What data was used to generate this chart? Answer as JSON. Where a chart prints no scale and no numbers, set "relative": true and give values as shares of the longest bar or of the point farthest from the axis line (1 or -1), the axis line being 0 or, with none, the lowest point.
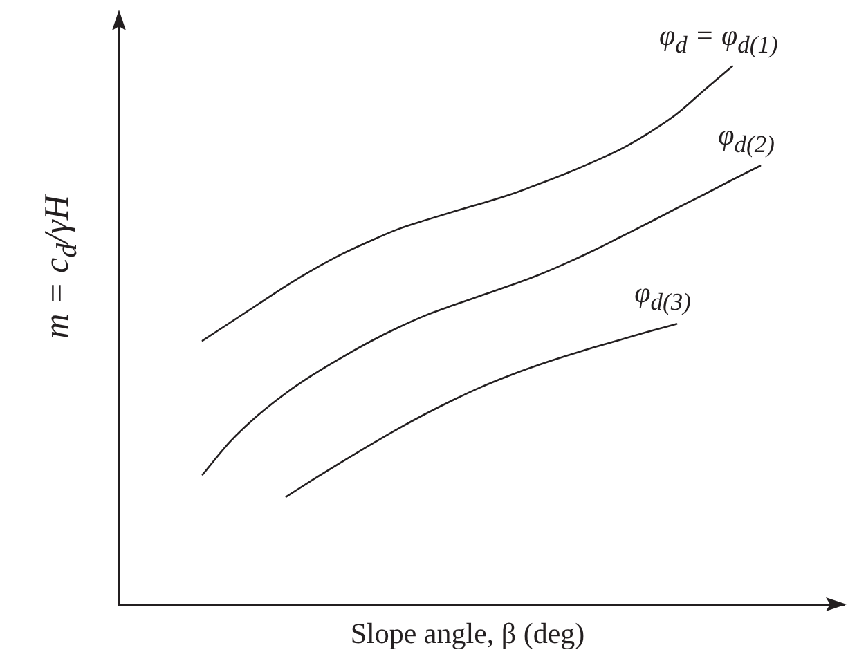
{
  "chart_data": {
    "type": "line",
    "relative": true,
    "xlabel": "Slope angle, β (deg)",
    "ylabel": "m = c$_{d}$/γH",
    "categories": [
      null,
      null,
      null,
      null,
      null,
      null,
      null,
      null,
      null,
      null,
      null,
      null,
      null,
      null,
      null,
      null,
      null,
      null,
      null,
      null,
      null,
      null,
      null,
      null,
      null,
      null,
      null
    ],
    "series": [
      {
        "name": "φ$_{d}$ = φ$_{d(1)}$",
        "color": "#231f20",
        "values": [
          null,
          null,
          null,
          0.49,
          0.524,
          0.558,
          0.592,
          0.623,
          0.651,
          0.675,
          0.697,
          0.714,
          0.73,
          0.745,
          0.761,
          0.78,
          0.8,
          0.822,
          0.846,
          0.876,
          0.911,
          0.956,
          1,
          null,
          null,
          null,
          null
        ]
      },
      {
        "name": "φ$_{d(2)}$",
        "color": "#231f20",
        "values": [
          null,
          null,
          null,
          0.241,
          0.303,
          0.352,
          0.393,
          0.428,
          0.459,
          0.488,
          0.514,
          0.537,
          0.556,
          0.574,
          0.592,
          0.611,
          0.633,
          0.657,
          0.683,
          0.709,
          0.736,
          0.762,
          0.789,
          0.815,
          null,
          null,
          null
        ]
      },
      {
        "name": "φ$_{d(3)}$",
        "color": "#231f20",
        "values": [
          null,
          null,
          null,
          null,
          null,
          null,
          0.2,
          0.233,
          0.265,
          0.296,
          0.326,
          0.354,
          0.38,
          0.404,
          0.425,
          0.444,
          0.461,
          0.477,
          0.492,
          0.507,
          0.521,
          null,
          null,
          null,
          null,
          null,
          null
        ]
      }
    ]
  }
}
